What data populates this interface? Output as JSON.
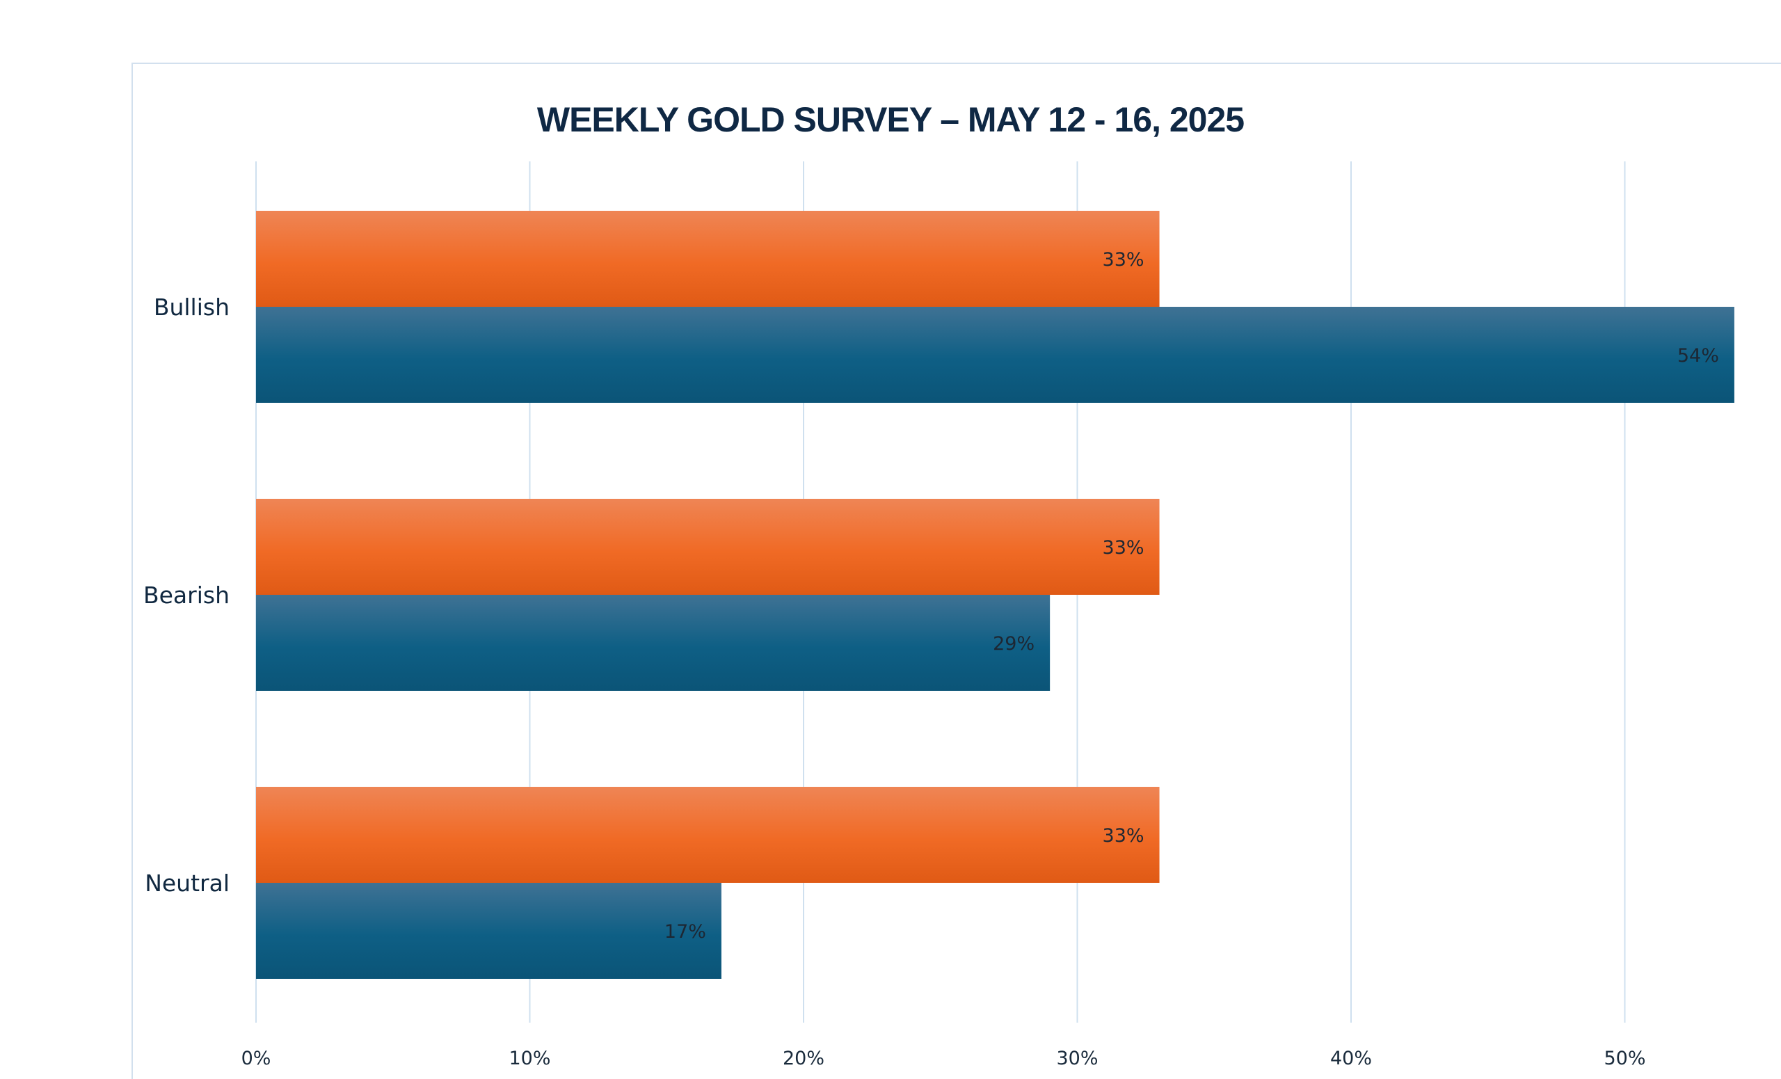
{
  "chart_data": {
    "type": "bar",
    "orientation": "horizontal",
    "title": "WEEKLY GOLD SURVEY – MAY 12 - 16, 2025",
    "categories": [
      "Bullish",
      "Bearish",
      "Neutral"
    ],
    "series": [
      {
        "values": [
          33,
          33,
          33
        ],
        "color": "#f06a25",
        "color_light": "#ef8555",
        "color_dark": "#e05a15"
      },
      {
        "values": [
          54,
          29,
          17
        ],
        "color": "#0e5f85",
        "color_light": "#3f7294",
        "color_dark": "#0b5477"
      }
    ],
    "data_labels": [
      [
        "33%",
        "33%",
        "33%"
      ],
      [
        "54%",
        "29%",
        "17%"
      ]
    ],
    "x_ticks": [
      "0%",
      "10%",
      "20%",
      "30%",
      "40%",
      "50%"
    ],
    "x_tick_values": [
      0,
      10,
      20,
      30,
      40,
      50
    ],
    "xlim": [
      0,
      55
    ],
    "grid": true,
    "legend": false,
    "gridline_color": "#cfe0ef"
  }
}
